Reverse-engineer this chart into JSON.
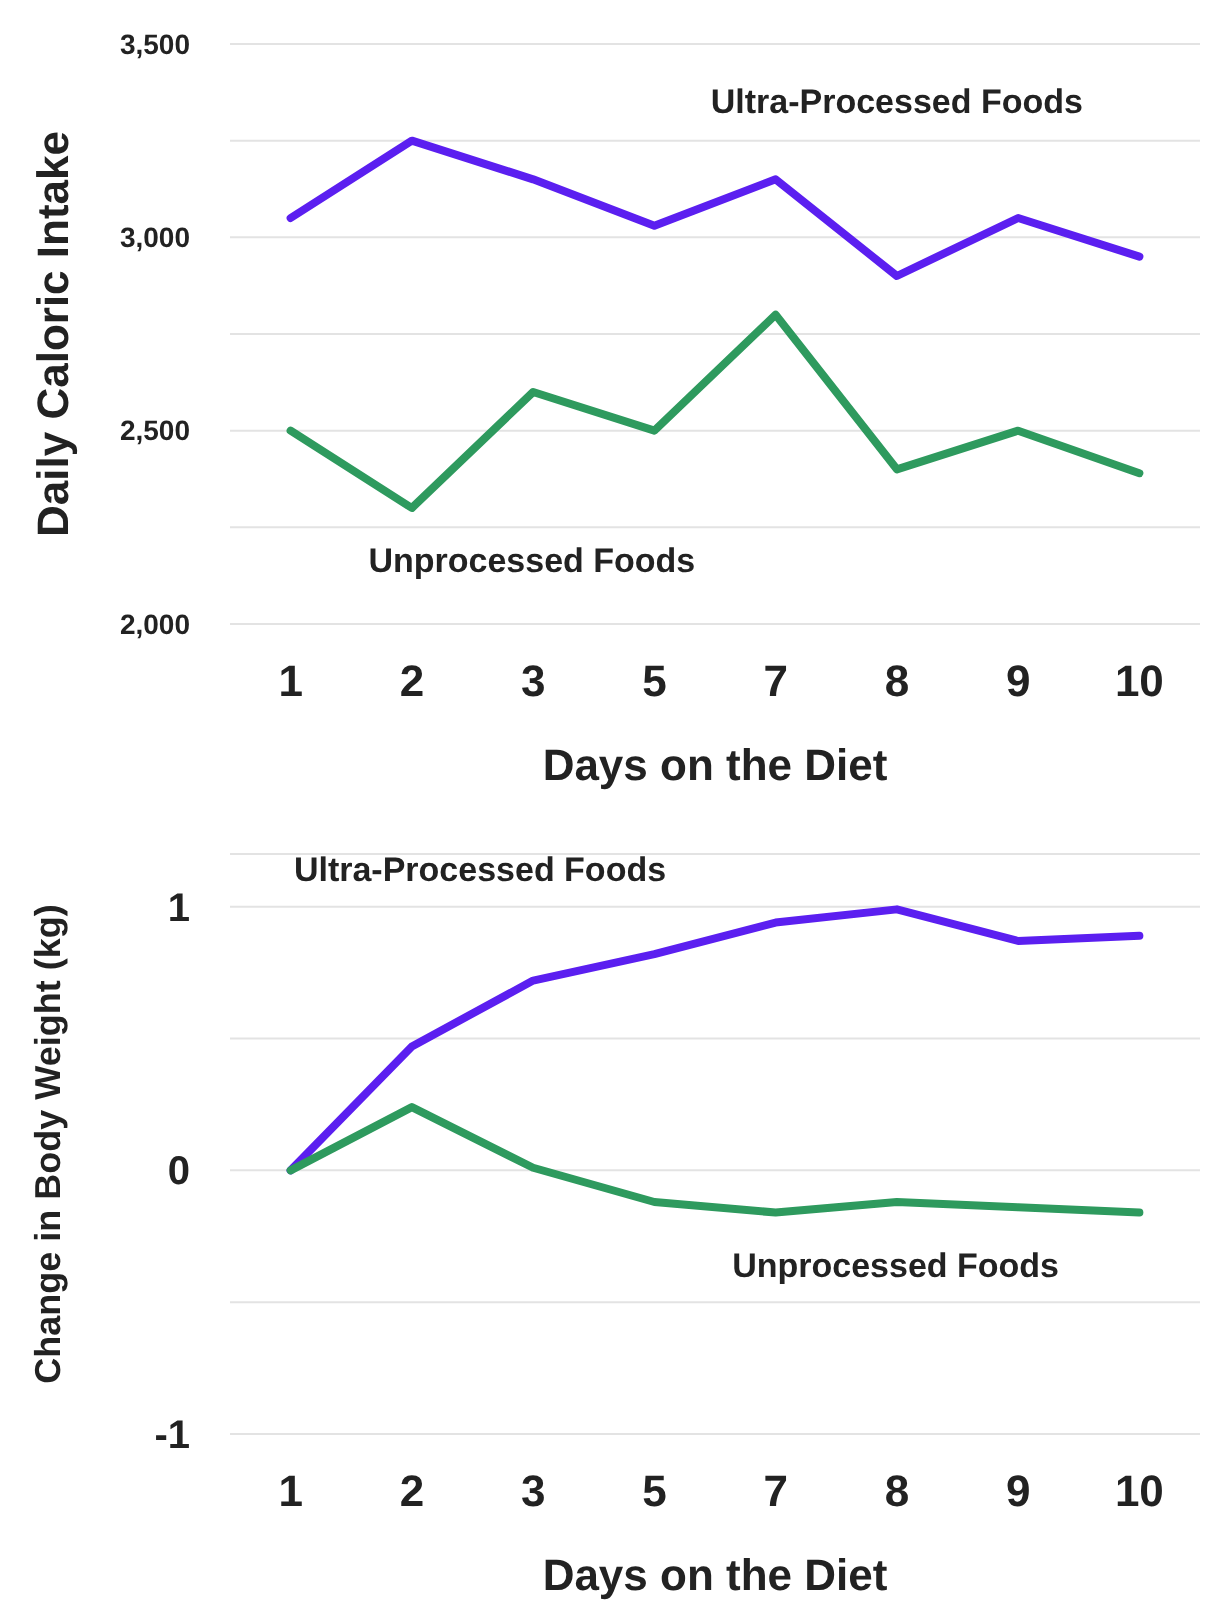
{
  "chart_data": [
    {
      "type": "line",
      "xlabel": "Days on the Diet",
      "ylabel": "Daily Caloric Intake",
      "categories": [
        "1",
        "2",
        "3",
        "5",
        "7",
        "8",
        "9",
        "10"
      ],
      "series": [
        {
          "name": "Ultra-Processed Foods",
          "color": "#5b1ff0",
          "values": [
            3050,
            3250,
            3150,
            3030,
            3150,
            2900,
            3050,
            2950
          ]
        },
        {
          "name": "Unprocessed Foods",
          "color": "#2e9a5e",
          "values": [
            2500,
            2300,
            2600,
            2500,
            2800,
            2400,
            2500,
            2390
          ]
        }
      ],
      "ylim": [
        2000,
        3500
      ],
      "yticks": [
        {
          "value": 2000,
          "label": "2,000"
        },
        {
          "value": 2250,
          "label": null
        },
        {
          "value": 2500,
          "label": "2,500"
        },
        {
          "value": 2750,
          "label": null
        },
        {
          "value": 3000,
          "label": "3,000"
        },
        {
          "value": 3250,
          "label": null
        },
        {
          "value": 3500,
          "label": "3,500"
        }
      ],
      "grid": "y",
      "legend": false,
      "marker": "none",
      "line_style": "solid"
    },
    {
      "type": "line",
      "xlabel": "Days on the Diet",
      "ylabel": "Change in Body Weight (kg)",
      "categories": [
        "1",
        "2",
        "3",
        "5",
        "7",
        "8",
        "9",
        "10"
      ],
      "series": [
        {
          "name": "Ultra-Processed Foods",
          "color": "#5b1ff0",
          "values": [
            0,
            0.47,
            0.72,
            0.82,
            0.94,
            0.99,
            0.87,
            0.89
          ]
        },
        {
          "name": "Unprocessed Foods",
          "color": "#2e9a5e",
          "values": [
            0,
            0.24,
            0.01,
            -0.12,
            -0.16,
            -0.12,
            -0.14,
            -0.16
          ]
        }
      ],
      "ylim": [
        -1,
        1.2
      ],
      "yticks": [
        -1,
        {
          "value": -0.5,
          "label": null
        },
        0,
        {
          "value": 0.5,
          "label": null
        },
        1,
        {
          "value": 1.2,
          "label": null
        }
      ],
      "grid": "y",
      "legend": false,
      "marker": "none",
      "line_style": "solid"
    }
  ]
}
